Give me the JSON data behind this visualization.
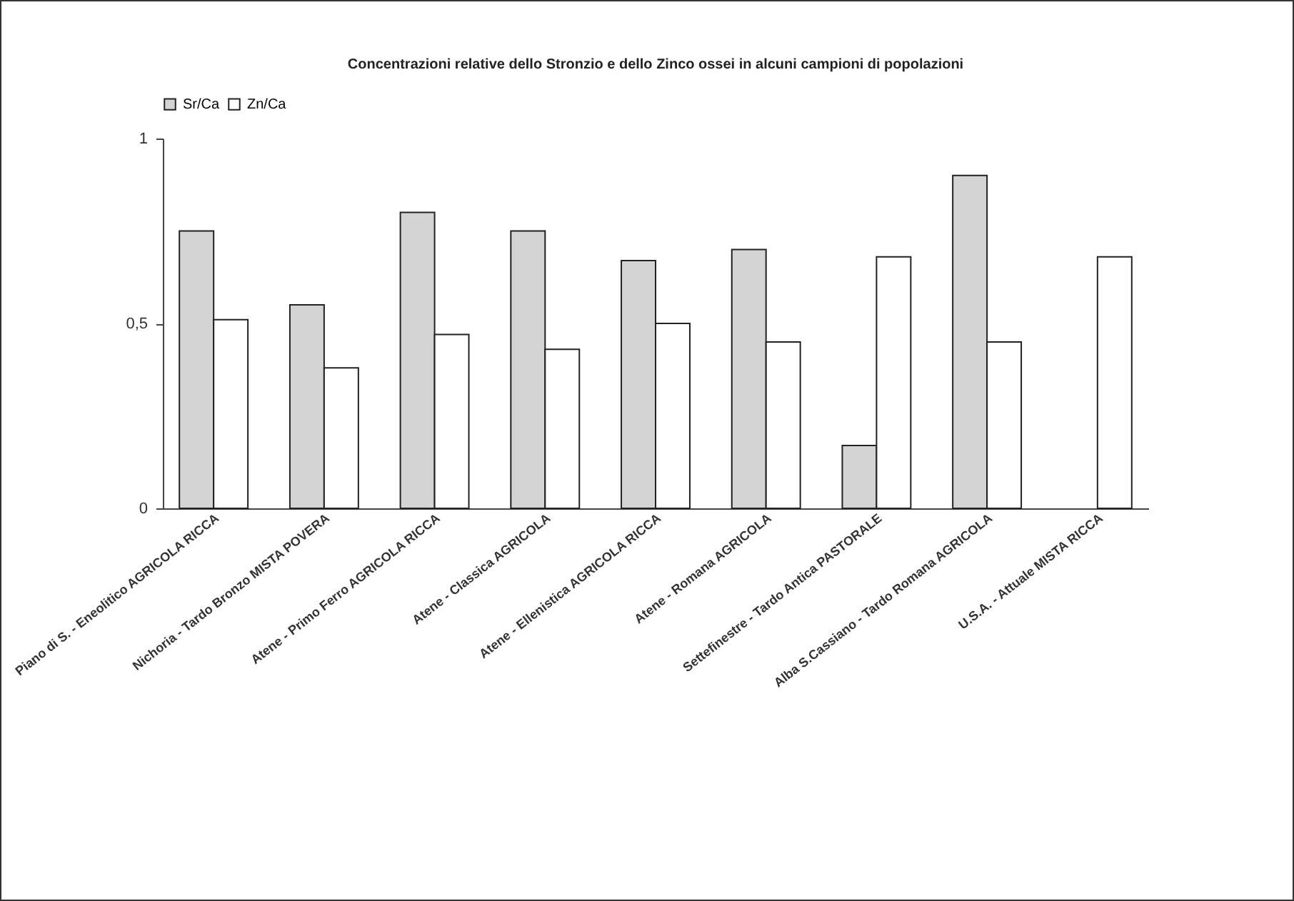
{
  "chart_data": {
    "type": "bar",
    "title": "Concentrazioni relative dello Stronzio e dello Zinco ossei in alcuni campioni di popolazioni",
    "categories": [
      "Piano di S. - Eneolitico AGRICOLA RICCA",
      "Nichoria - Tardo Bronzo MISTA POVERA",
      "Atene - Primo Ferro AGRICOLA RICCA",
      "Atene - Classica AGRICOLA",
      "Atene - Ellenistica AGRICOLA RICCA",
      "Atene - Romana AGRICOLA",
      "Settefinestre - Tardo Antica PASTORALE",
      "Alba S.Cassiano - Tardo Romana AGRICOLA",
      "U.S.A. - Attuale MISTA RICCA"
    ],
    "series": [
      {
        "name": "Sr/Ca",
        "color": "#d4d4d4",
        "values": [
          0.75,
          0.55,
          0.8,
          0.75,
          0.67,
          0.7,
          0.17,
          0.9,
          null
        ]
      },
      {
        "name": "Zn/Ca",
        "color": "#ffffff",
        "values": [
          0.51,
          0.38,
          0.47,
          0.43,
          0.5,
          0.45,
          0.68,
          0.45,
          0.68
        ]
      }
    ],
    "ylim": [
      0,
      1
    ],
    "yticks": [
      0,
      {
        "value": 0.5,
        "label": "0,5"
      },
      1
    ],
    "legend": "top"
  }
}
